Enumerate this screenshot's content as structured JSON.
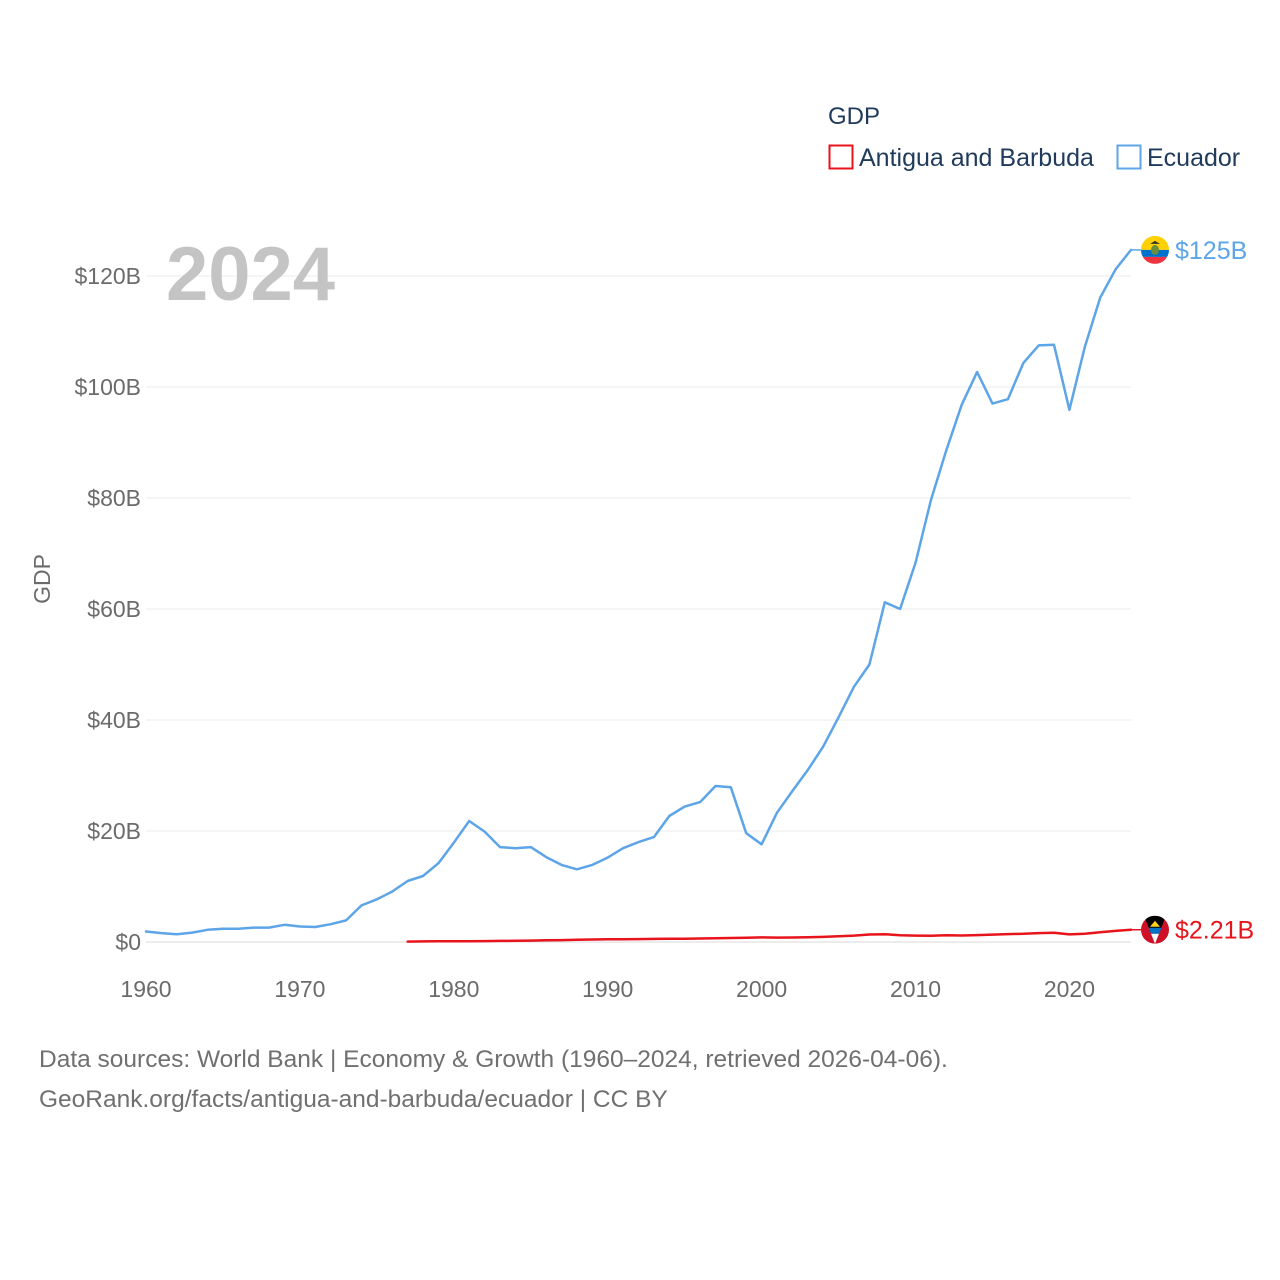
{
  "chart_data": {
    "type": "line",
    "year_label": "2024",
    "legend_title": "GDP",
    "ylabel": "GDP",
    "xlim": [
      1960,
      2024
    ],
    "ylim": [
      0,
      130
    ],
    "x_ticks": [
      1960,
      1970,
      1980,
      1990,
      2000,
      2010,
      2020
    ],
    "x_tick_labels": [
      "1960",
      "1970",
      "1980",
      "1990",
      "2000",
      "2010",
      "2020"
    ],
    "y_ticks": [
      0,
      20,
      40,
      60,
      80,
      100,
      120
    ],
    "y_tick_labels": [
      "$0",
      "$20B",
      "$40B",
      "$60B",
      "$80B",
      "$100B",
      "$120B"
    ],
    "series": [
      {
        "name": "Antigua and Barbuda",
        "color": "#e8141c",
        "end_label": "$2.21B",
        "flag_icon": "antigua-flag-icon",
        "x": [
          1977,
          1978,
          1979,
          1980,
          1981,
          1982,
          1983,
          1984,
          1985,
          1986,
          1987,
          1988,
          1989,
          1990,
          1991,
          1992,
          1993,
          1994,
          1995,
          1996,
          1997,
          1998,
          1999,
          2000,
          2001,
          2002,
          2003,
          2004,
          2005,
          2006,
          2007,
          2008,
          2009,
          2010,
          2011,
          2012,
          2013,
          2014,
          2015,
          2016,
          2017,
          2018,
          2019,
          2020,
          2021,
          2022,
          2023,
          2024
        ],
        "values": [
          0.08,
          0.1,
          0.12,
          0.13,
          0.15,
          0.17,
          0.19,
          0.22,
          0.25,
          0.3,
          0.35,
          0.4,
          0.45,
          0.48,
          0.5,
          0.52,
          0.56,
          0.6,
          0.58,
          0.63,
          0.68,
          0.72,
          0.76,
          0.83,
          0.8,
          0.81,
          0.85,
          0.92,
          1.02,
          1.15,
          1.35,
          1.4,
          1.22,
          1.15,
          1.14,
          1.2,
          1.18,
          1.25,
          1.34,
          1.43,
          1.47,
          1.6,
          1.66,
          1.37,
          1.47,
          1.75,
          2.0,
          2.21
        ]
      },
      {
        "name": "Ecuador",
        "color": "#5da5e8",
        "end_label": "$125B",
        "flag_icon": "ecuador-flag-icon",
        "x": [
          1960,
          1961,
          1962,
          1963,
          1964,
          1965,
          1966,
          1967,
          1968,
          1969,
          1970,
          1971,
          1972,
          1973,
          1974,
          1975,
          1976,
          1977,
          1978,
          1979,
          1980,
          1981,
          1982,
          1983,
          1984,
          1985,
          1986,
          1987,
          1988,
          1989,
          1990,
          1991,
          1992,
          1993,
          1994,
          1995,
          1996,
          1997,
          1998,
          1999,
          2000,
          2001,
          2002,
          2003,
          2004,
          2005,
          2006,
          2007,
          2008,
          2009,
          2010,
          2011,
          2012,
          2013,
          2014,
          2015,
          2016,
          2017,
          2018,
          2019,
          2020,
          2021,
          2022,
          2023,
          2024
        ],
        "values": [
          1.9,
          1.6,
          1.4,
          1.7,
          2.2,
          2.4,
          2.4,
          2.6,
          2.6,
          3.1,
          2.8,
          2.7,
          3.2,
          3.9,
          6.6,
          7.7,
          9.1,
          11.0,
          11.9,
          14.2,
          17.9,
          21.8,
          19.9,
          17.1,
          16.9,
          17.1,
          15.3,
          13.9,
          13.1,
          13.9,
          15.2,
          16.9,
          18.0,
          18.9,
          22.7,
          24.4,
          25.2,
          28.1,
          27.9,
          19.6,
          17.6,
          23.3,
          27.2,
          31.0,
          35.2,
          40.5,
          46.0,
          50.0,
          61.2,
          60.0,
          68.3,
          79.6,
          88.6,
          96.8,
          102.7,
          97.0,
          97.8,
          104.3,
          107.5,
          107.6,
          95.9,
          107.2,
          116.1,
          121.2,
          124.7
        ]
      }
    ]
  },
  "footer": {
    "line1": "Data sources: World Bank | Economy & Growth (1960–2024, retrieved 2026-04-06).",
    "line2": "GeoRank.org/facts/antigua-and-barbuda/ecuador | CC BY"
  }
}
